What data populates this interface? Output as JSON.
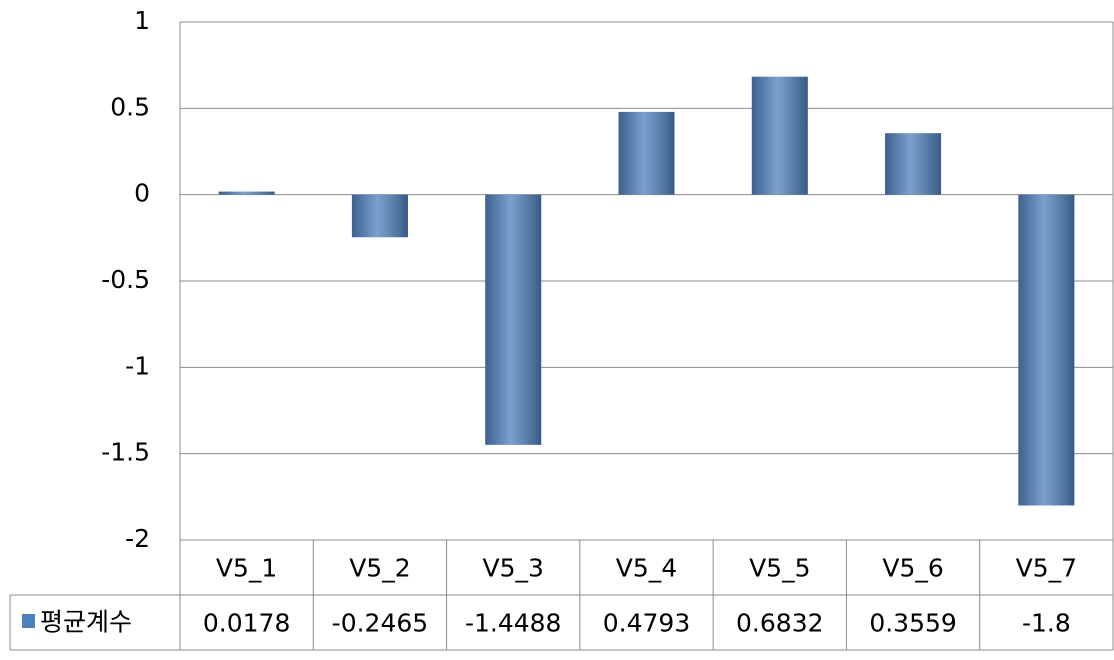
{
  "chart_data": {
    "type": "bar",
    "categories": [
      "V5_1",
      "V5_2",
      "V5_3",
      "V5_4",
      "V5_5",
      "V5_6",
      "V5_7"
    ],
    "series": [
      {
        "name": "평균계수",
        "color": "#4f81bd",
        "values": [
          0.0178,
          -0.2465,
          -1.4488,
          0.4793,
          0.6832,
          0.3559,
          -1.8
        ]
      }
    ],
    "ylim": [
      -2,
      1
    ],
    "yticks": [
      -2,
      -1.5,
      -1,
      -0.5,
      0,
      0.5,
      1
    ],
    "grid": true,
    "data_table": true
  }
}
